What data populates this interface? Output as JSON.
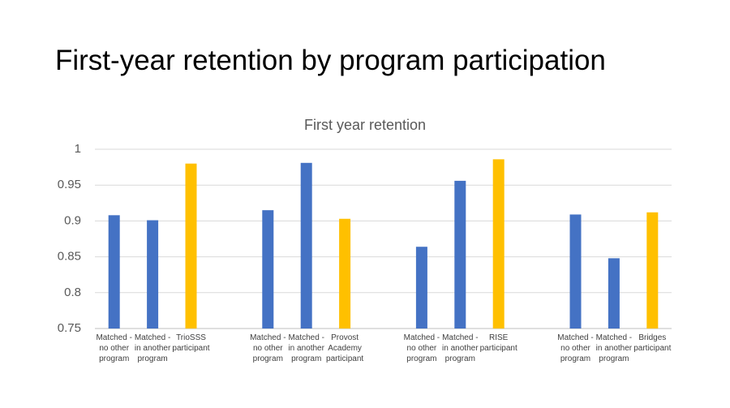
{
  "slide_title": "First-year retention by program participation",
  "chart_data": {
    "type": "bar",
    "title": "First year retention",
    "categories": [
      [
        "Matched -",
        "no other",
        "program"
      ],
      [
        "Matched -",
        "in another",
        "program"
      ],
      [
        "TrioSSS",
        "participant"
      ],
      null,
      [
        "Matched -",
        "no other",
        "program"
      ],
      [
        "Matched -",
        "in another",
        "program"
      ],
      [
        "Provost",
        "Academy",
        "participant"
      ],
      null,
      [
        "Matched -",
        "no other",
        "program"
      ],
      [
        "Matched -",
        "in another",
        "program"
      ],
      [
        "RISE",
        "participant"
      ],
      null,
      [
        "Matched -",
        "no other",
        "program"
      ],
      [
        "Matched -",
        "in another",
        "program"
      ],
      [
        "Bridges",
        "participant"
      ]
    ],
    "values": [
      0.908,
      0.901,
      0.98,
      null,
      0.915,
      0.981,
      0.903,
      null,
      0.864,
      0.956,
      0.986,
      null,
      0.909,
      0.848,
      0.912
    ],
    "colors": [
      "#4472c4",
      "#4472c4",
      "#ffc000",
      null,
      "#4472c4",
      "#4472c4",
      "#ffc000",
      null,
      "#4472c4",
      "#4472c4",
      "#ffc000",
      null,
      "#4472c4",
      "#4472c4",
      "#ffc000"
    ],
    "ylim": [
      0.75,
      1
    ],
    "yticks": [
      0.75,
      0.8,
      0.85,
      0.9,
      0.95,
      1
    ],
    "grid": true
  }
}
